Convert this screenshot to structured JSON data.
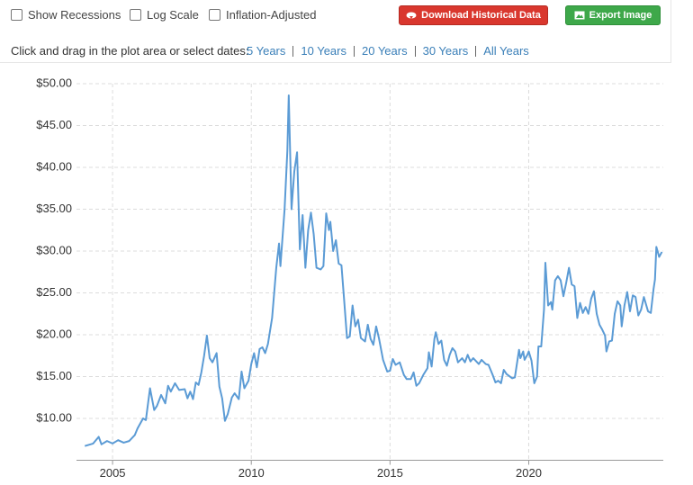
{
  "controls": {
    "checkboxes": [
      "Show Recessions",
      "Log Scale",
      "Inflation-Adjusted"
    ],
    "buttons": [
      "Download Historical Data",
      "Export Image"
    ],
    "prompt": "Click and drag in the plot area or select dates:",
    "ranges": [
      "5 Years",
      "10 Years",
      "20 Years",
      "30 Years",
      "All Years"
    ]
  },
  "chart_data": {
    "type": "line",
    "x": [
      2004.0,
      2004.3,
      2004.5,
      2004.6,
      2004.8,
      2005.0,
      2005.2,
      2005.4,
      2005.6,
      2005.8,
      2005.9,
      2006.1,
      2006.2,
      2006.35,
      2006.5,
      2006.6,
      2006.75,
      2006.9,
      2007.0,
      2007.1,
      2007.25,
      2007.4,
      2007.6,
      2007.7,
      2007.8,
      2007.9,
      2008.0,
      2008.1,
      2008.2,
      2008.3,
      2008.4,
      2008.5,
      2008.6,
      2008.75,
      2008.85,
      2008.95,
      2009.05,
      2009.15,
      2009.3,
      2009.4,
      2009.55,
      2009.65,
      2009.75,
      2009.9,
      2010.0,
      2010.1,
      2010.2,
      2010.3,
      2010.4,
      2010.5,
      2010.6,
      2010.75,
      2010.9,
      2011.0,
      2011.05,
      2011.2,
      2011.3,
      2011.35,
      2011.45,
      2011.55,
      2011.65,
      2011.75,
      2011.85,
      2011.95,
      2012.05,
      2012.15,
      2012.25,
      2012.35,
      2012.5,
      2012.6,
      2012.7,
      2012.8,
      2012.85,
      2012.95,
      2013.05,
      2013.15,
      2013.25,
      2013.35,
      2013.45,
      2013.55,
      2013.65,
      2013.75,
      2013.85,
      2013.95,
      2014.1,
      2014.2,
      2014.3,
      2014.4,
      2014.5,
      2014.6,
      2014.75,
      2014.9,
      2015.0,
      2015.1,
      2015.2,
      2015.35,
      2015.5,
      2015.6,
      2015.75,
      2015.85,
      2015.95,
      2016.05,
      2016.2,
      2016.35,
      2016.4,
      2016.5,
      2016.6,
      2016.65,
      2016.75,
      2016.85,
      2016.95,
      2017.05,
      2017.15,
      2017.25,
      2017.35,
      2017.45,
      2017.6,
      2017.7,
      2017.8,
      2017.9,
      2018.0,
      2018.2,
      2018.3,
      2018.45,
      2018.55,
      2018.7,
      2018.8,
      2018.9,
      2019.0,
      2019.1,
      2019.2,
      2019.4,
      2019.5,
      2019.65,
      2019.7,
      2019.8,
      2019.85,
      2019.95,
      2020.0,
      2020.1,
      2020.2,
      2020.3,
      2020.35,
      2020.45,
      2020.55,
      2020.6,
      2020.7,
      2020.8,
      2020.85,
      2020.95,
      2021.05,
      2021.15,
      2021.25,
      2021.35,
      2021.45,
      2021.55,
      2021.65,
      2021.75,
      2021.85,
      2021.95,
      2022.05,
      2022.15,
      2022.25,
      2022.35,
      2022.45,
      2022.55,
      2022.65,
      2022.75,
      2022.8,
      2022.9,
      2023.0,
      2023.1,
      2023.2,
      2023.3,
      2023.35,
      2023.45,
      2023.55,
      2023.65,
      2023.75,
      2023.85,
      2023.95,
      2024.05,
      2024.15,
      2024.3,
      2024.4,
      2024.5,
      2024.55,
      2024.6,
      2024.7,
      2024.8
    ],
    "series": [
      {
        "color": "#5b9bd5",
        "values": [
          6.7,
          7.0,
          7.8,
          6.9,
          7.3,
          7.0,
          7.4,
          7.1,
          7.3,
          8.0,
          8.8,
          10.0,
          9.8,
          13.6,
          11.0,
          11.5,
          12.8,
          11.8,
          13.9,
          13.2,
          14.2,
          13.4,
          13.5,
          12.4,
          13.2,
          12.3,
          14.3,
          14.0,
          15.5,
          17.5,
          19.9,
          17.2,
          16.7,
          17.8,
          13.8,
          12.4,
          9.7,
          10.5,
          12.5,
          13.0,
          12.3,
          15.6,
          13.6,
          14.5,
          16.5,
          17.8,
          16.1,
          18.3,
          18.5,
          17.8,
          18.9,
          22.0,
          28.0,
          30.9,
          28.2,
          35.0,
          42.0,
          48.6,
          35.0,
          39.5,
          41.8,
          30.2,
          34.3,
          28.0,
          32.5,
          34.6,
          32.0,
          28.0,
          27.8,
          28.2,
          34.5,
          32.5,
          33.5,
          30.0,
          31.3,
          28.5,
          28.3,
          24.0,
          19.6,
          19.8,
          23.5,
          21.0,
          21.8,
          19.6,
          19.2,
          21.2,
          19.5,
          18.8,
          21.0,
          19.6,
          17.0,
          15.6,
          15.7,
          17.1,
          16.4,
          16.7,
          15.2,
          14.7,
          14.7,
          15.5,
          13.9,
          14.2,
          15.2,
          16.0,
          17.9,
          16.2,
          19.5,
          20.3,
          18.9,
          19.3,
          17.0,
          16.3,
          17.6,
          18.4,
          18.0,
          16.7,
          17.2,
          16.7,
          17.6,
          16.8,
          17.2,
          16.5,
          17.0,
          16.5,
          16.4,
          15.2,
          14.3,
          14.5,
          14.2,
          15.8,
          15.3,
          14.8,
          14.9,
          18.2,
          17.2,
          18.0,
          17.0,
          17.6,
          18.0,
          16.9,
          14.2,
          15.0,
          18.6,
          18.6,
          23.0,
          28.6,
          23.5,
          23.9,
          23.0,
          26.5,
          27.0,
          26.5,
          24.6,
          26.2,
          28.0,
          26.0,
          25.8,
          22.0,
          23.8,
          22.6,
          23.3,
          22.5,
          24.3,
          25.2,
          22.5,
          21.2,
          20.6,
          19.9,
          18.0,
          19.2,
          19.3,
          22.5,
          24.0,
          23.5,
          21.0,
          23.5,
          25.1,
          22.8,
          24.7,
          24.5,
          22.3,
          23.0,
          24.5,
          22.8,
          22.6,
          25.5,
          26.6,
          30.5,
          29.3,
          29.9
        ]
      }
    ],
    "xlim": [
      2003.7,
      2024.85
    ],
    "xticks": [
      2005,
      2010,
      2015,
      2020
    ],
    "ylim": [
      5,
      50
    ],
    "yticks": [
      {
        "value": 10,
        "label": "$10.00"
      },
      {
        "value": 15,
        "label": "$15.00"
      },
      {
        "value": 20,
        "label": "$20.00"
      },
      {
        "value": 25,
        "label": "$25.00"
      },
      {
        "value": 30,
        "label": "$30.00"
      },
      {
        "value": 35,
        "label": "$35.00"
      },
      {
        "value": 40,
        "label": "$40.00"
      },
      {
        "value": 45,
        "label": "$45.00"
      },
      {
        "value": 50,
        "label": "$50.00"
      }
    ],
    "grid": true
  }
}
